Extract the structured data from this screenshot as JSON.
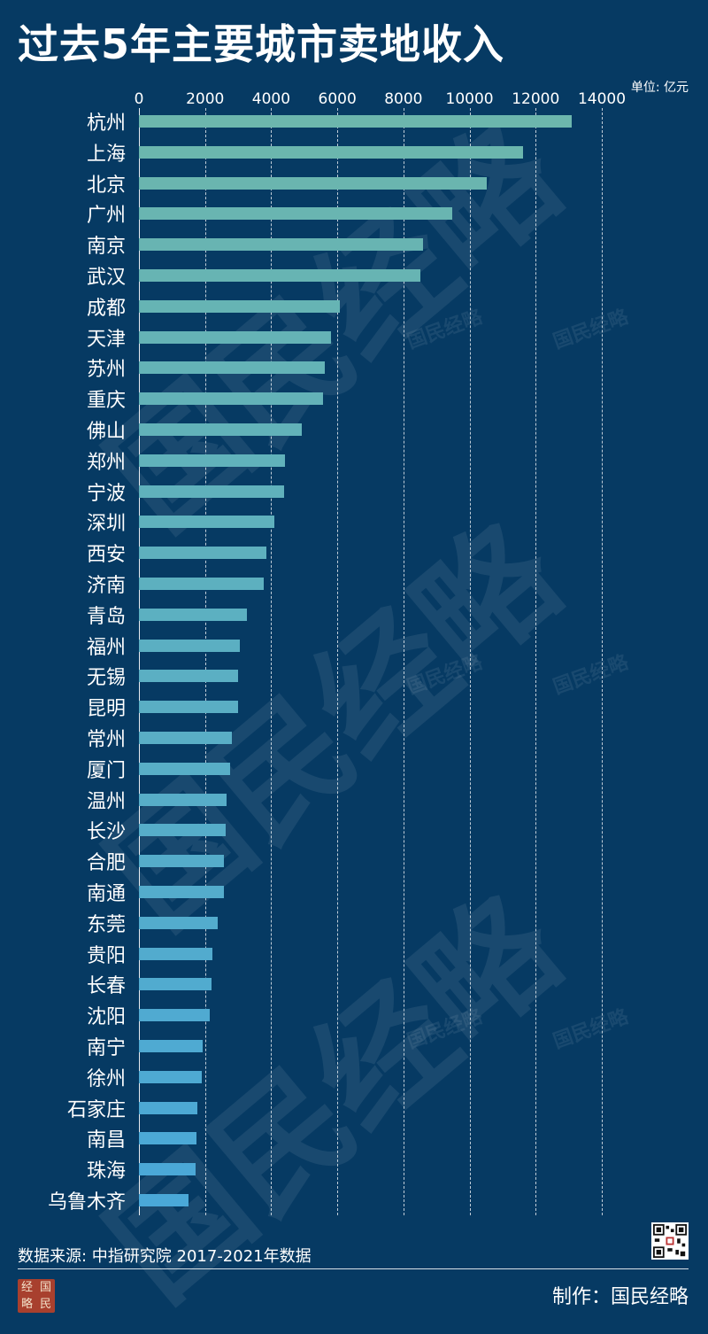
{
  "title": "过去5年主要城市卖地收入",
  "unit_label": "单位: 亿元",
  "watermark_big": "国民经略",
  "watermark_small": "国民经略",
  "source": "数据来源: 中指研究院  2017-2021年数据",
  "credit": "制作：国民经略",
  "logo_chars": [
    "经",
    "国",
    "略",
    "民"
  ],
  "colors": {
    "background": "#063a63",
    "bar_top": "#6cb6ad",
    "bar_bottom": "#4aa8d8"
  },
  "chart_data": {
    "type": "bar",
    "orientation": "horizontal",
    "title": "过去5年主要城市卖地收入",
    "unit": "单位: 亿元",
    "xlim": [
      0,
      14000
    ],
    "xticks": [
      0,
      2000,
      4000,
      6000,
      8000,
      10000,
      12000,
      14000
    ],
    "grid": true,
    "categories": [
      "杭州",
      "上海",
      "北京",
      "广州",
      "南京",
      "武汉",
      "成都",
      "天津",
      "苏州",
      "重庆",
      "佛山",
      "郑州",
      "宁波",
      "深圳",
      "西安",
      "济南",
      "青岛",
      "福州",
      "无锡",
      "昆明",
      "常州",
      "厦门",
      "温州",
      "长沙",
      "合肥",
      "南通",
      "东莞",
      "贵阳",
      "长春",
      "沈阳",
      "南宁",
      "徐州",
      "石家庄",
      "南昌",
      "珠海",
      "乌鲁木齐"
    ],
    "values": [
      13080,
      11620,
      10520,
      9480,
      8590,
      8520,
      6080,
      5800,
      5630,
      5570,
      4920,
      4420,
      4390,
      4090,
      3860,
      3780,
      3270,
      3050,
      3000,
      2990,
      2820,
      2750,
      2660,
      2630,
      2580,
      2560,
      2380,
      2210,
      2200,
      2140,
      1920,
      1900,
      1760,
      1730,
      1710,
      1510
    ]
  }
}
